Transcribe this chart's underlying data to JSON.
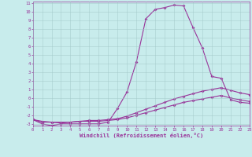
{
  "xlabel": "Windchill (Refroidissement éolien,°C)",
  "background_color": "#c8ecec",
  "line_color": "#993399",
  "grid_color": "#a0c8c8",
  "x_values": [
    0,
    1,
    2,
    3,
    4,
    5,
    6,
    7,
    8,
    9,
    10,
    11,
    12,
    13,
    14,
    15,
    16,
    17,
    18,
    19,
    20,
    21,
    22,
    23
  ],
  "curve1": [
    -2.5,
    -3.0,
    -3.2,
    -3.0,
    -3.0,
    -3.0,
    -3.0,
    -3.0,
    -2.8,
    -1.2,
    0.7,
    4.2,
    9.2,
    10.3,
    10.5,
    10.8,
    10.7,
    8.2,
    5.8,
    2.5,
    2.3,
    -0.2,
    -0.5,
    -0.6
  ],
  "curve2": [
    -2.5,
    -2.8,
    -2.8,
    -2.9,
    -2.8,
    -2.7,
    -2.6,
    -2.6,
    -2.5,
    -2.4,
    -2.1,
    -1.7,
    -1.3,
    -0.9,
    -0.5,
    -0.1,
    0.2,
    0.5,
    0.8,
    1.0,
    1.2,
    0.9,
    0.6,
    0.4
  ],
  "curve3": [
    -2.5,
    -2.7,
    -2.8,
    -2.8,
    -2.8,
    -2.7,
    -2.7,
    -2.7,
    -2.6,
    -2.5,
    -2.3,
    -2.0,
    -1.7,
    -1.4,
    -1.1,
    -0.8,
    -0.5,
    -0.3,
    -0.1,
    0.1,
    0.3,
    0.0,
    -0.2,
    -0.4
  ],
  "xlim": [
    0,
    23
  ],
  "ylim": [
    -3.2,
    11.2
  ],
  "yticks": [
    -3,
    -2,
    -1,
    0,
    1,
    2,
    3,
    4,
    5,
    6,
    7,
    8,
    9,
    10,
    11
  ],
  "xticks": [
    0,
    1,
    2,
    3,
    4,
    5,
    6,
    7,
    8,
    9,
    10,
    11,
    12,
    13,
    14,
    15,
    16,
    17,
    18,
    19,
    20,
    21,
    22,
    23
  ],
  "tick_fontsize": 4.0,
  "xlabel_fontsize": 5.0,
  "marker_size": 2.0,
  "line_width": 0.8
}
